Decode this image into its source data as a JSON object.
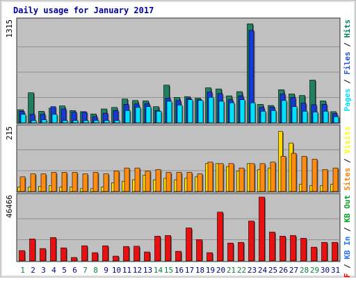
{
  "chart_data": {
    "type": "bar",
    "title": "Daily usage for January 2017",
    "categories": [
      "1",
      "2",
      "3",
      "4",
      "5",
      "6",
      "7",
      "8",
      "9",
      "10",
      "11",
      "12",
      "13",
      "14",
      "15",
      "16",
      "17",
      "18",
      "19",
      "20",
      "21",
      "22",
      "23",
      "24",
      "25",
      "26",
      "27",
      "28",
      "29",
      "30",
      "31"
    ],
    "weekend_days": [
      "1",
      "7",
      "8",
      "14",
      "15",
      "21",
      "22",
      "28",
      "29"
    ],
    "panels": [
      {
        "id": "top",
        "max_label": "1315",
        "ylim": [
          0,
          1315
        ],
        "legend": [
          {
            "label": "Pages",
            "color": "#00e0ff"
          },
          {
            "label": "Files",
            "color": "#2050d8"
          },
          {
            "label": "Hits",
            "color": "#008060"
          }
        ],
        "separator": " / ",
        "series": [
          {
            "name": "Hits",
            "color": "#208060",
            "values": [
              170,
              390,
              150,
              190,
              220,
              160,
              145,
              115,
              180,
              200,
              310,
              290,
              285,
              210,
              490,
              330,
              340,
              320,
              455,
              440,
              350,
              405,
              1285,
              240,
              225,
              430,
              375,
              355,
              555,
              285,
              145
            ]
          },
          {
            "name": "Files",
            "color": "#1838d8",
            "values": [
              150,
              110,
              110,
              210,
              180,
              140,
              140,
              80,
              125,
              160,
              240,
              245,
              250,
              160,
              320,
              290,
              320,
              300,
              400,
              380,
              300,
              350,
              1200,
              200,
              205,
              375,
              330,
              255,
              235,
              240,
              120
            ]
          },
          {
            "name": "Pages",
            "color": "#00e0ff",
            "values": [
              110,
              30,
              40,
              110,
              30,
              30,
              30,
              30,
              30,
              30,
              160,
              200,
              210,
              150,
              280,
              230,
              300,
              290,
              330,
              280,
              260,
              300,
              260,
              150,
              160,
              290,
              210,
              150,
              140,
              150,
              80
            ]
          }
        ]
      },
      {
        "id": "middle",
        "max_label": "215",
        "ylim": [
          0,
          215
        ],
        "legend": [
          {
            "label": "Sites",
            "color": "#ff8000"
          },
          {
            "label": "Visits",
            "color": "#ffff00"
          }
        ],
        "separator": " / ",
        "series": [
          {
            "name": "Visits",
            "color": "#ffd800",
            "values": [
              15,
              15,
              18,
              20,
              15,
              15,
              10,
              10,
              15,
              30,
              35,
              40,
              55,
              40,
              45,
              40,
              45,
              50,
              95,
              95,
              85,
              70,
              95,
              75,
              80,
              205,
              165,
              25,
              20,
              20,
              25
            ]
          },
          {
            "name": "Sites",
            "color": "#ff8c10",
            "values": [
              50,
              60,
              60,
              65,
              65,
              65,
              60,
              65,
              60,
              70,
              80,
              80,
              70,
              75,
              65,
              65,
              65,
              60,
              100,
              95,
              95,
              80,
              95,
              95,
              100,
              120,
              130,
              120,
              110,
              75,
              80
            ]
          }
        ]
      },
      {
        "id": "bottom",
        "max_label": "46466",
        "ylim": [
          0,
          46466
        ],
        "legend": [
          {
            "label": "KB F",
            "color": "#ff0000"
          },
          {
            "label": "KB In",
            "color": "#2070ff"
          },
          {
            "label": "KB Out",
            "color": "#00a020"
          }
        ],
        "separator": " / ",
        "series": [
          {
            "name": "KB F",
            "color": "#e81010",
            "values": [
              7500,
              16000,
              9000,
              17000,
              9500,
              2500,
              11000,
              6000,
              11000,
              3500,
              10500,
              10700,
              6500,
              18000,
              18500,
              7000,
              24000,
              15500,
              6000,
              35500,
              13000,
              13500,
              29000,
              46466,
              21000,
              18000,
              18500,
              16500,
              10000,
              13500,
              13500
            ]
          }
        ]
      }
    ],
    "grid": true
  }
}
